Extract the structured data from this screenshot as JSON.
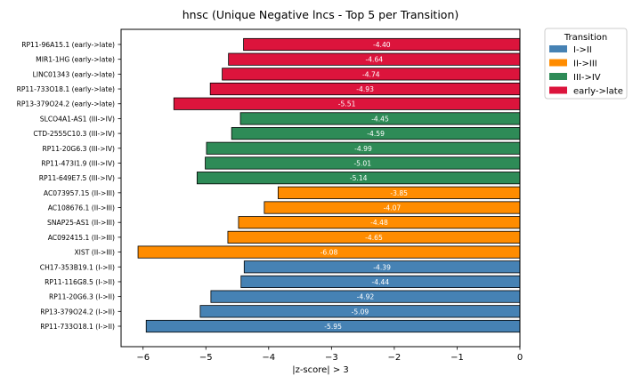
{
  "chart_data": {
    "type": "bar",
    "orientation": "horizontal",
    "title": "hnsc (Unique Negative lncs - Top 5 per Transition)",
    "xlabel": "|z-score| > 3",
    "ylabel": "",
    "xlim": [
      -6.35,
      0
    ],
    "xticks": [
      -6,
      -5,
      -4,
      -3,
      -2,
      -1,
      0
    ],
    "xtick_labels": [
      "−6",
      "−5",
      "−4",
      "−3",
      "−2",
      "−1",
      "0"
    ],
    "grid": false,
    "legend": {
      "title": "Transition",
      "placement": "outside-top-right",
      "entries": [
        {
          "label": "I->II",
          "color": "#4682b4"
        },
        {
          "label": "II->III",
          "color": "#ff8c00"
        },
        {
          "label": "III->IV",
          "color": "#2e8b57"
        },
        {
          "label": "early->late",
          "color": "#dc143c"
        }
      ]
    },
    "bars": [
      {
        "label": "RP11-96A15.1 (early->late)",
        "value": -4.4,
        "value_label": "-4.40",
        "group": "early->late"
      },
      {
        "label": "MIR1-1HG (early->late)",
        "value": -4.64,
        "value_label": "-4.64",
        "group": "early->late"
      },
      {
        "label": "LINC01343 (early->late)",
        "value": -4.74,
        "value_label": "-4.74",
        "group": "early->late"
      },
      {
        "label": "RP11-733O18.1 (early->late)",
        "value": -4.93,
        "value_label": "-4.93",
        "group": "early->late"
      },
      {
        "label": "RP13-379O24.2 (early->late)",
        "value": -5.51,
        "value_label": "-5.51",
        "group": "early->late"
      },
      {
        "label": "SLCO4A1-AS1 (III->IV)",
        "value": -4.45,
        "value_label": "-4.45",
        "group": "III->IV"
      },
      {
        "label": "CTD-2555C10.3 (III->IV)",
        "value": -4.59,
        "value_label": "-4.59",
        "group": "III->IV"
      },
      {
        "label": "RP11-20G6.3 (III->IV)",
        "value": -4.99,
        "value_label": "-4.99",
        "group": "III->IV"
      },
      {
        "label": "RP11-473I1.9 (III->IV)",
        "value": -5.01,
        "value_label": "-5.01",
        "group": "III->IV"
      },
      {
        "label": "RP11-649E7.5 (III->IV)",
        "value": -5.14,
        "value_label": "-5.14",
        "group": "III->IV"
      },
      {
        "label": "AC073957.15 (II->III)",
        "value": -3.85,
        "value_label": "-3.85",
        "group": "II->III"
      },
      {
        "label": "AC108676.1 (II->III)",
        "value": -4.07,
        "value_label": "-4.07",
        "group": "II->III"
      },
      {
        "label": "SNAP25-AS1 (II->III)",
        "value": -4.48,
        "value_label": "-4.48",
        "group": "II->III"
      },
      {
        "label": "AC092415.1 (II->III)",
        "value": -4.65,
        "value_label": "-4.65",
        "group": "II->III"
      },
      {
        "label": "XIST (II->III)",
        "value": -6.08,
        "value_label": "-6.08",
        "group": "II->III"
      },
      {
        "label": "CH17-353B19.1 (I->II)",
        "value": -4.39,
        "value_label": "-4.39",
        "group": "I->II"
      },
      {
        "label": "RP11-116G8.5 (I->II)",
        "value": -4.44,
        "value_label": "-4.44",
        "group": "I->II"
      },
      {
        "label": "RP11-20G6.3 (I->II)",
        "value": -4.92,
        "value_label": "-4.92",
        "group": "I->II"
      },
      {
        "label": "RP13-379O24.2 (I->II)",
        "value": -5.09,
        "value_label": "-5.09",
        "group": "I->II"
      },
      {
        "label": "RP11-733O18.1 (I->II)",
        "value": -5.95,
        "value_label": "-5.95",
        "group": "I->II"
      }
    ]
  }
}
